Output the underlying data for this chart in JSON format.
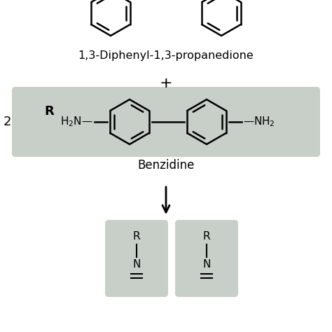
{
  "title": "1,3-Diphenyl-1,3-propanedione",
  "reagent_label": "Benzidine",
  "coefficient": "2",
  "plus_sign": "+",
  "arrow": "↓",
  "bg_color": "#ffffff",
  "box_color": "#c8cfc8",
  "text_color": "#000000",
  "bold_R": "R",
  "amine_left": "H₂N—",
  "amine_right": "—NH₂",
  "product_top": "R",
  "product_mid": "—",
  "product_N": "N",
  "product_double": "||"
}
